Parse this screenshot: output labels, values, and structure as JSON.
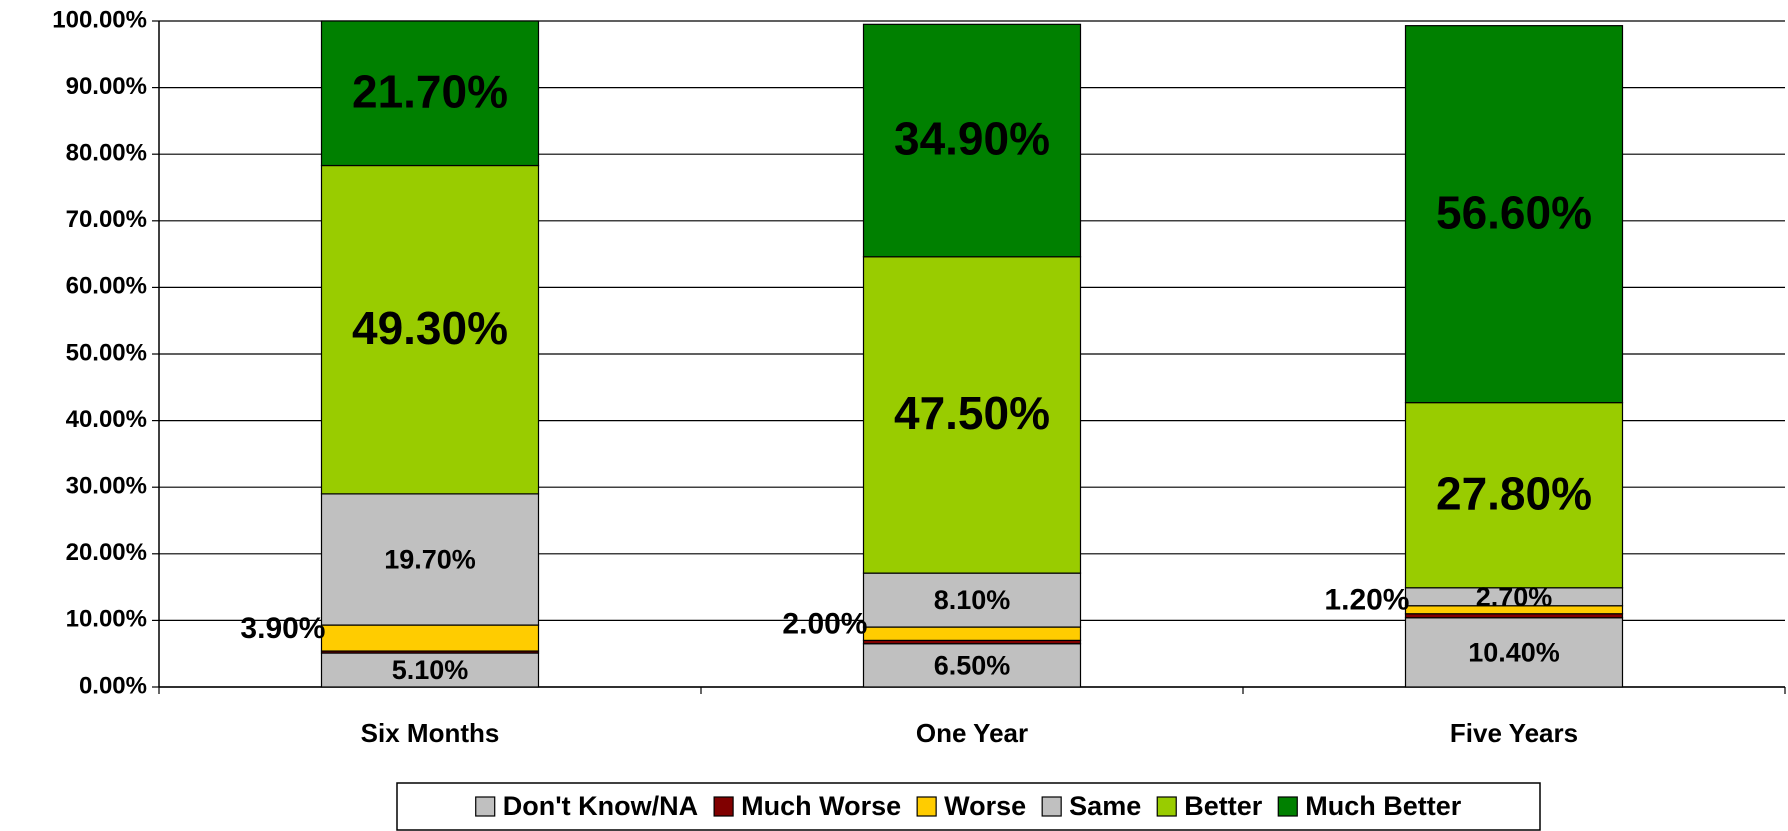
{
  "chart_data": {
    "type": "stacked_bar",
    "categories": [
      "Six Months",
      "One Year",
      "Five Years"
    ],
    "series": [
      {
        "name": "Don't Know/NA",
        "color": "#c0c0c0",
        "values": [
          5.1,
          6.5,
          10.4
        ],
        "value_labels": [
          "5.10%",
          "6.50%",
          "10.40%"
        ]
      },
      {
        "name": "Much Worse",
        "color": "#800000",
        "values": [
          0.3,
          0.5,
          0.6
        ]
      },
      {
        "name": "Worse",
        "color": "#ffcc00",
        "values": [
          3.9,
          2.0,
          1.2
        ],
        "value_labels": [
          "3.90%",
          "2.00%",
          "1.20%"
        ]
      },
      {
        "name": "Same",
        "color": "#c0c0c0",
        "values": [
          19.7,
          8.1,
          2.7
        ],
        "value_labels": [
          "19.70%",
          "8.10%",
          "2.70%"
        ]
      },
      {
        "name": "Better",
        "color": "#99cc00",
        "values": [
          49.3,
          47.5,
          27.8
        ],
        "value_labels": [
          "49.30%",
          "47.50%",
          "27.80%"
        ]
      },
      {
        "name": "Much Better",
        "color": "#008000",
        "values": [
          21.7,
          34.9,
          56.6
        ],
        "value_labels": [
          "21.70%",
          "34.90%",
          "56.60%"
        ]
      }
    ],
    "ylim": [
      0,
      100
    ],
    "yticks": [
      {
        "value": 0,
        "label": "0.00%"
      },
      {
        "value": 10,
        "label": "10.00%"
      },
      {
        "value": 20,
        "label": "20.00%"
      },
      {
        "value": 30,
        "label": "30.00%"
      },
      {
        "value": 40,
        "label": "40.00%"
      },
      {
        "value": 50,
        "label": "50.00%"
      },
      {
        "value": 60,
        "label": "60.00%"
      },
      {
        "value": 70,
        "label": "70.00%"
      },
      {
        "value": 80,
        "label": "80.00%"
      },
      {
        "value": 90,
        "label": "90.00%"
      },
      {
        "value": 100,
        "label": "100.00%"
      }
    ],
    "grid": true,
    "legend": "bottom"
  }
}
